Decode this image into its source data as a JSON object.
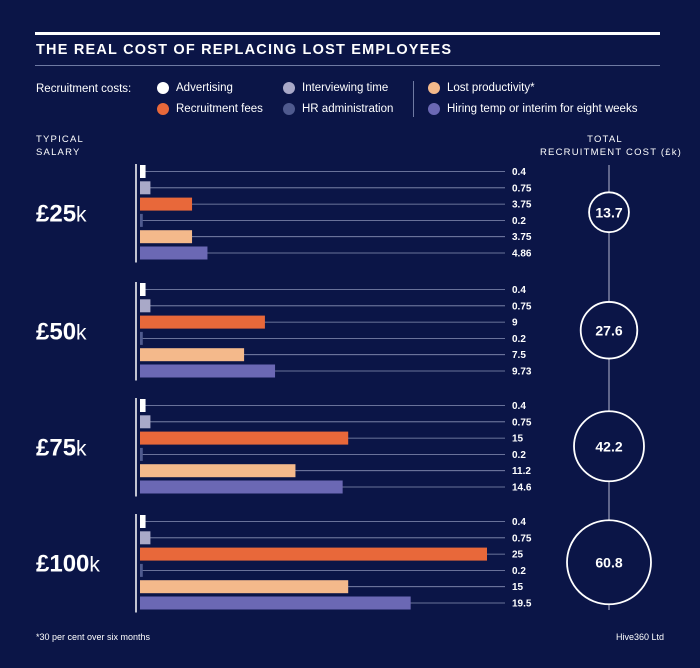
{
  "title": "THE REAL COST OF REPLACING LOST EMPLOYEES",
  "legend_label": "Recruitment costs:",
  "legend": [
    {
      "name": "Advertising",
      "color": "#ffffff"
    },
    {
      "name": "Recruitment fees",
      "color": "#e8683a"
    },
    {
      "name": "Interviewing time",
      "color": "#a9a9c8"
    },
    {
      "name": "HR administration",
      "color": "#4f5a8e"
    },
    {
      "name": "Lost productivity*",
      "color": "#f4b98b"
    },
    {
      "name": "Hiring temp or interim for eight weeks",
      "color": "#6b68b4"
    }
  ],
  "left_header": "TYPICAL\nSALARY",
  "right_header": "TOTAL\nRECRUITMENT COST (£k)",
  "footnote": "*30 per cent over six months",
  "credit": "Hive360 Ltd",
  "chart_data": {
    "type": "bar",
    "orientation": "horizontal",
    "series_order": [
      "Advertising",
      "Interviewing time",
      "Recruitment fees",
      "HR administration",
      "Lost productivity*",
      "Hiring temp or interim for eight weeks"
    ],
    "groups": [
      {
        "salary_prefix": "£25",
        "salary_suffix": "k",
        "values": [
          0.4,
          0.75,
          3.75,
          0.2,
          3.75,
          4.86
        ],
        "labels": [
          "0.4",
          "0.75",
          "3.75",
          "0.2",
          "3.75",
          "4.86"
        ],
        "total": 13.7,
        "total_label": "13.7"
      },
      {
        "salary_prefix": "£50",
        "salary_suffix": "k",
        "values": [
          0.4,
          0.75,
          9,
          0.2,
          7.5,
          9.73
        ],
        "labels": [
          "0.4",
          "0.75",
          "9",
          "0.2",
          "7.5",
          "9.73"
        ],
        "total": 27.6,
        "total_label": "27.6"
      },
      {
        "salary_prefix": "£75",
        "salary_suffix": "k",
        "values": [
          0.4,
          0.75,
          15,
          0.2,
          11.2,
          14.6
        ],
        "labels": [
          "0.4",
          "0.75",
          "15",
          "0.2",
          "11.2",
          "14.6"
        ],
        "total": 42.2,
        "total_label": "42.2"
      },
      {
        "salary_prefix": "£100",
        "salary_suffix": "k",
        "values": [
          0.4,
          0.75,
          25,
          0.2,
          15,
          19.5
        ],
        "labels": [
          "0.4",
          "0.75",
          "25",
          "0.2",
          "15",
          "19.5"
        ],
        "total": 60.8,
        "total_label": "60.8"
      }
    ],
    "xlim": [
      0,
      25
    ]
  }
}
